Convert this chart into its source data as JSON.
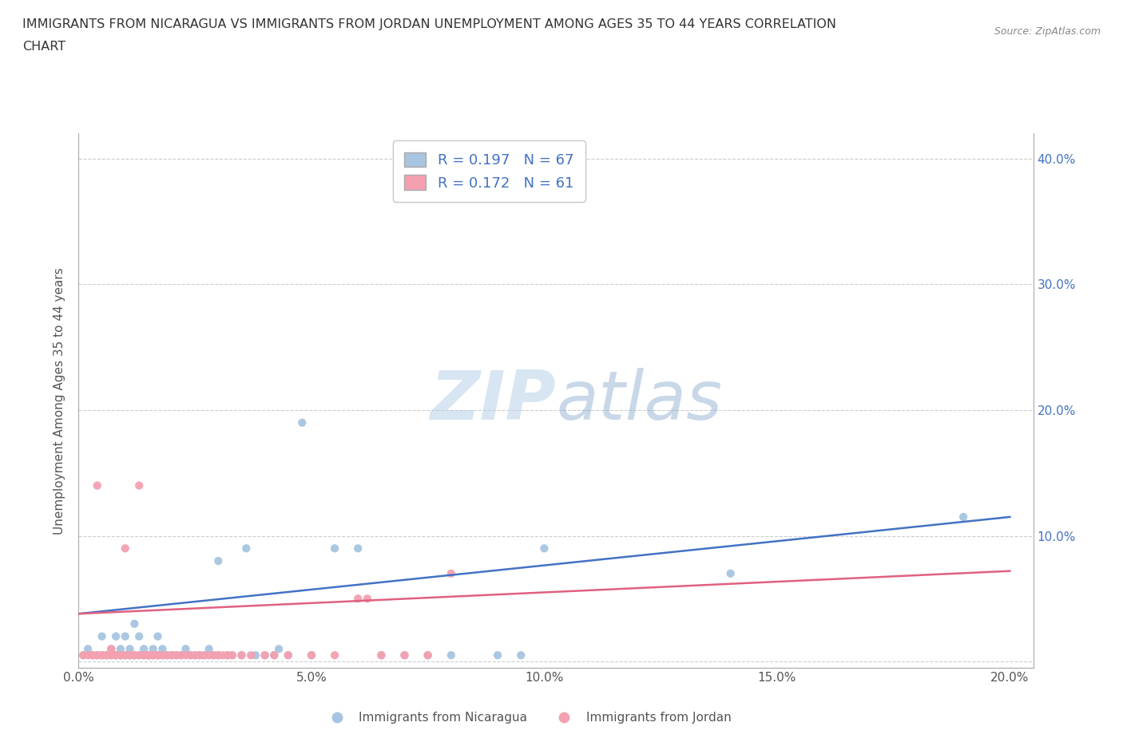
{
  "title_line1": "IMMIGRANTS FROM NICARAGUA VS IMMIGRANTS FROM JORDAN UNEMPLOYMENT AMONG AGES 35 TO 44 YEARS CORRELATION",
  "title_line2": "CHART",
  "source_text": "Source: ZipAtlas.com",
  "ylabel": "Unemployment Among Ages 35 to 44 years",
  "xlim": [
    0.0,
    0.205
  ],
  "ylim": [
    -0.005,
    0.42
  ],
  "xticks": [
    0.0,
    0.05,
    0.1,
    0.15,
    0.2
  ],
  "yticks": [
    0.0,
    0.1,
    0.2,
    0.3,
    0.4
  ],
  "xtick_labels": [
    "0.0%",
    "5.0%",
    "10.0%",
    "15.0%",
    "20.0%"
  ],
  "right_ytick_labels": [
    "",
    "10.0%",
    "20.0%",
    "30.0%",
    "40.0%"
  ],
  "nicaragua_color": "#a8c4e0",
  "jordan_color": "#f4a0b0",
  "nicaragua_line_color": "#4472c4",
  "jordan_line_color": "#e06080",
  "r_nicaragua": 0.197,
  "n_nicaragua": 67,
  "r_jordan": 0.172,
  "n_jordan": 61,
  "legend_label_nicaragua": "Immigrants from Nicaragua",
  "legend_label_jordan": "Immigrants from Jordan",
  "legend_r_n_color": "#4472c4",
  "watermark_zip": "ZIP",
  "watermark_atlas": "atlas",
  "background_color": "#ffffff",
  "grid_color": "#cccccc",
  "nicaragua_trend_x": [
    0.0,
    0.2
  ],
  "nicaragua_trend_y": [
    0.038,
    0.115
  ],
  "jordan_trend_x": [
    0.0,
    0.2
  ],
  "jordan_trend_y": [
    0.038,
    0.072
  ],
  "nicaragua_scatter": [
    [
      0.001,
      0.005
    ],
    [
      0.002,
      0.01
    ],
    [
      0.003,
      0.005
    ],
    [
      0.004,
      0.005
    ],
    [
      0.005,
      0.005
    ],
    [
      0.005,
      0.02
    ],
    [
      0.006,
      0.005
    ],
    [
      0.007,
      0.005
    ],
    [
      0.007,
      0.01
    ],
    [
      0.008,
      0.005
    ],
    [
      0.008,
      0.02
    ],
    [
      0.009,
      0.005
    ],
    [
      0.009,
      0.01
    ],
    [
      0.01,
      0.005
    ],
    [
      0.01,
      0.02
    ],
    [
      0.011,
      0.005
    ],
    [
      0.011,
      0.01
    ],
    [
      0.012,
      0.005
    ],
    [
      0.012,
      0.03
    ],
    [
      0.013,
      0.005
    ],
    [
      0.013,
      0.02
    ],
    [
      0.014,
      0.005
    ],
    [
      0.014,
      0.01
    ],
    [
      0.015,
      0.005
    ],
    [
      0.015,
      0.005
    ],
    [
      0.016,
      0.005
    ],
    [
      0.016,
      0.01
    ],
    [
      0.017,
      0.005
    ],
    [
      0.017,
      0.02
    ],
    [
      0.018,
      0.005
    ],
    [
      0.018,
      0.01
    ],
    [
      0.019,
      0.005
    ],
    [
      0.02,
      0.005
    ],
    [
      0.02,
      0.005
    ],
    [
      0.021,
      0.005
    ],
    [
      0.022,
      0.005
    ],
    [
      0.023,
      0.01
    ],
    [
      0.024,
      0.005
    ],
    [
      0.025,
      0.005
    ],
    [
      0.026,
      0.005
    ],
    [
      0.027,
      0.005
    ],
    [
      0.028,
      0.01
    ],
    [
      0.029,
      0.005
    ],
    [
      0.03,
      0.005
    ],
    [
      0.03,
      0.08
    ],
    [
      0.032,
      0.005
    ],
    [
      0.033,
      0.005
    ],
    [
      0.035,
      0.005
    ],
    [
      0.036,
      0.09
    ],
    [
      0.038,
      0.005
    ],
    [
      0.04,
      0.005
    ],
    [
      0.042,
      0.005
    ],
    [
      0.043,
      0.01
    ],
    [
      0.045,
      0.005
    ],
    [
      0.048,
      0.19
    ],
    [
      0.05,
      0.005
    ],
    [
      0.055,
      0.09
    ],
    [
      0.06,
      0.09
    ],
    [
      0.065,
      0.005
    ],
    [
      0.07,
      0.005
    ],
    [
      0.075,
      0.005
    ],
    [
      0.08,
      0.005
    ],
    [
      0.09,
      0.005
    ],
    [
      0.095,
      0.005
    ],
    [
      0.1,
      0.09
    ],
    [
      0.14,
      0.07
    ],
    [
      0.19,
      0.115
    ]
  ],
  "jordan_scatter": [
    [
      0.001,
      0.005
    ],
    [
      0.002,
      0.005
    ],
    [
      0.003,
      0.005
    ],
    [
      0.003,
      0.005
    ],
    [
      0.004,
      0.005
    ],
    [
      0.004,
      0.14
    ],
    [
      0.005,
      0.005
    ],
    [
      0.005,
      0.005
    ],
    [
      0.006,
      0.005
    ],
    [
      0.006,
      0.005
    ],
    [
      0.007,
      0.005
    ],
    [
      0.007,
      0.01
    ],
    [
      0.008,
      0.005
    ],
    [
      0.008,
      0.005
    ],
    [
      0.009,
      0.005
    ],
    [
      0.009,
      0.005
    ],
    [
      0.01,
      0.005
    ],
    [
      0.01,
      0.09
    ],
    [
      0.011,
      0.005
    ],
    [
      0.011,
      0.005
    ],
    [
      0.012,
      0.005
    ],
    [
      0.012,
      0.005
    ],
    [
      0.013,
      0.005
    ],
    [
      0.013,
      0.14
    ],
    [
      0.014,
      0.005
    ],
    [
      0.014,
      0.005
    ],
    [
      0.015,
      0.005
    ],
    [
      0.015,
      0.005
    ],
    [
      0.016,
      0.005
    ],
    [
      0.016,
      0.005
    ],
    [
      0.017,
      0.005
    ],
    [
      0.017,
      0.005
    ],
    [
      0.018,
      0.005
    ],
    [
      0.019,
      0.005
    ],
    [
      0.02,
      0.005
    ],
    [
      0.021,
      0.005
    ],
    [
      0.022,
      0.005
    ],
    [
      0.023,
      0.005
    ],
    [
      0.024,
      0.005
    ],
    [
      0.025,
      0.005
    ],
    [
      0.026,
      0.005
    ],
    [
      0.027,
      0.005
    ],
    [
      0.028,
      0.005
    ],
    [
      0.029,
      0.005
    ],
    [
      0.03,
      0.005
    ],
    [
      0.031,
      0.005
    ],
    [
      0.032,
      0.005
    ],
    [
      0.033,
      0.005
    ],
    [
      0.035,
      0.005
    ],
    [
      0.037,
      0.005
    ],
    [
      0.04,
      0.005
    ],
    [
      0.042,
      0.005
    ],
    [
      0.045,
      0.005
    ],
    [
      0.05,
      0.005
    ],
    [
      0.055,
      0.005
    ],
    [
      0.06,
      0.05
    ],
    [
      0.062,
      0.05
    ],
    [
      0.065,
      0.005
    ],
    [
      0.07,
      0.005
    ],
    [
      0.075,
      0.005
    ],
    [
      0.08,
      0.07
    ]
  ]
}
